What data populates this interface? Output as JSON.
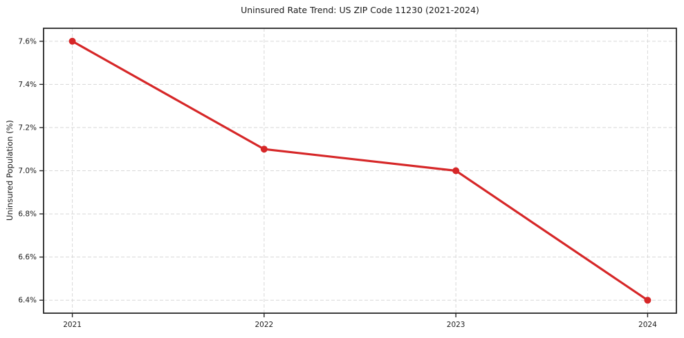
{
  "chart_data": {
    "type": "line",
    "title": "Uninsured Rate Trend: US ZIP Code 11230 (2021-2024)",
    "ylabel": "Uninsured Population (%)",
    "xlabel": "",
    "x": [
      2021,
      2022,
      2023,
      2024
    ],
    "values": [
      7.6,
      7.1,
      7.0,
      6.4
    ],
    "xtick_labels": [
      "2021",
      "2022",
      "2023",
      "2024"
    ],
    "yticks": [
      6.4,
      6.6,
      6.8,
      7.0,
      7.2,
      7.4,
      7.6
    ],
    "ytick_labels": [
      "6.4%",
      "6.6%",
      "6.8%",
      "7.0%",
      "7.2%",
      "7.4%",
      "7.6%"
    ],
    "xlim": [
      2020.85,
      2024.15
    ],
    "ylim": [
      6.34,
      7.66
    ],
    "grid": "dashed-both-axes",
    "legend": "none",
    "colors": {
      "line": "#d62728",
      "marker": "#d62728",
      "grid": "#d8d8d8",
      "spine": "#262626",
      "tick": "#262626",
      "text": "#1a1a1a",
      "background": "#ffffff"
    }
  }
}
